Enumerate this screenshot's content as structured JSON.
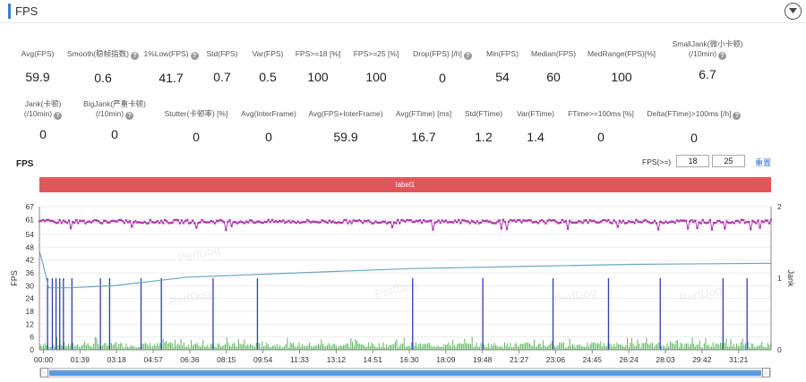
{
  "header": {
    "title": "FPS"
  },
  "metrics_row1": [
    {
      "label": "Avg(FPS)",
      "value": "59.9",
      "help": false
    },
    {
      "label": "Smooth(稳帧指数)",
      "value": "0.6",
      "help": true
    },
    {
      "label": "1%Low(FPS)",
      "value": "41.7",
      "help": true
    },
    {
      "label": "Std(FPS)",
      "value": "0.7",
      "help": false
    },
    {
      "label": "Var(FPS)",
      "value": "0.5",
      "help": false
    },
    {
      "label": "FPS>=18 [%]",
      "value": "100",
      "help": false
    },
    {
      "label": "FPS>=25 [%]",
      "value": "100",
      "help": false
    },
    {
      "label": "Drop(FPS) [/h]",
      "value": "0",
      "help": true
    },
    {
      "label": "Min(FPS)",
      "value": "54",
      "help": false
    },
    {
      "label": "Median(FPS)",
      "value": "60",
      "help": false
    },
    {
      "label": "MedRange(FPS)[%]",
      "value": "100",
      "help": false
    },
    {
      "label": "SmallJank(微小卡顿)",
      "label2": "(/10min)",
      "value": "6.7",
      "help": true
    }
  ],
  "metrics_row2": [
    {
      "label": "Jank(卡顿)",
      "label2": "(/10min)",
      "value": "0",
      "help": true
    },
    {
      "label": "BigJank(严重卡顿)",
      "label2": "(/10min)",
      "value": "0",
      "help": true
    },
    {
      "label": "Stutter(卡顿率) [%]",
      "value": "0",
      "help": false
    },
    {
      "label": "Avg(InterFrame)",
      "value": "0",
      "help": false
    },
    {
      "label": "Avg(FPS+InterFrame)",
      "value": "59.9",
      "help": false
    },
    {
      "label": "Avg(FTime) [ms]",
      "value": "16.7",
      "help": false
    },
    {
      "label": "Std(FTime)",
      "value": "1.2",
      "help": false
    },
    {
      "label": "Var(FTime)",
      "value": "1.4",
      "help": false
    },
    {
      "label": "FTime>=100ms [%]",
      "value": "0",
      "help": false
    },
    {
      "label": "Delta(FTime)>100ms [/h]",
      "value": "0",
      "help": true
    }
  ],
  "watermark": "PerfDog",
  "controls": {
    "fps_ge_label": "FPS(>=)",
    "fps_threshold_1": "18",
    "fps_threshold_2": "25",
    "reset_label": "重置"
  },
  "chart_data": {
    "type": "line",
    "title": "FPS",
    "label_bar": "label1",
    "ylabel": "FPS",
    "y2label": "Jank",
    "ylim": [
      0,
      67
    ],
    "y2lim": [
      0,
      2
    ],
    "yticks": [
      0,
      6,
      12,
      18,
      24,
      30,
      36,
      42,
      48,
      54,
      61,
      67
    ],
    "y2ticks": [
      0,
      1,
      2
    ],
    "xticks": [
      "00:00",
      "01:39",
      "03:18",
      "04:57",
      "06:36",
      "08:15",
      "09:54",
      "11:33",
      "13:12",
      "14:51",
      "16:30",
      "18:09",
      "19:48",
      "21:27",
      "23:06",
      "24:45",
      "26:24",
      "28:03",
      "29:42",
      "31:21"
    ],
    "x_range_seconds": [
      0,
      1980
    ],
    "series": [
      {
        "name": "FPS",
        "color": "#b03ab0",
        "approx_value": 60,
        "min": 54,
        "max": 61
      },
      {
        "name": "Jank",
        "color": "#2c3eb8",
        "spike_times_seconds": [
          22,
          35,
          45,
          55,
          65,
          88,
          165,
          190,
          275,
          330,
          470,
          590,
          1010,
          1200,
          1390,
          1540,
          1680,
          1850,
          1915
        ]
      },
      {
        "name": "Avg(FTime)",
        "color": "#6aa6c4",
        "points": [
          [
            0,
            46
          ],
          [
            10,
            40
          ],
          [
            25,
            29
          ],
          [
            80,
            29
          ],
          [
            200,
            30
          ],
          [
            400,
            34
          ],
          [
            700,
            36
          ],
          [
            1000,
            38
          ],
          [
            1300,
            39
          ],
          [
            1600,
            40
          ],
          [
            1980,
            40.5
          ]
        ]
      },
      {
        "name": "InterFrame",
        "color": "#5fb85f",
        "approx_value": 1
      }
    ]
  }
}
